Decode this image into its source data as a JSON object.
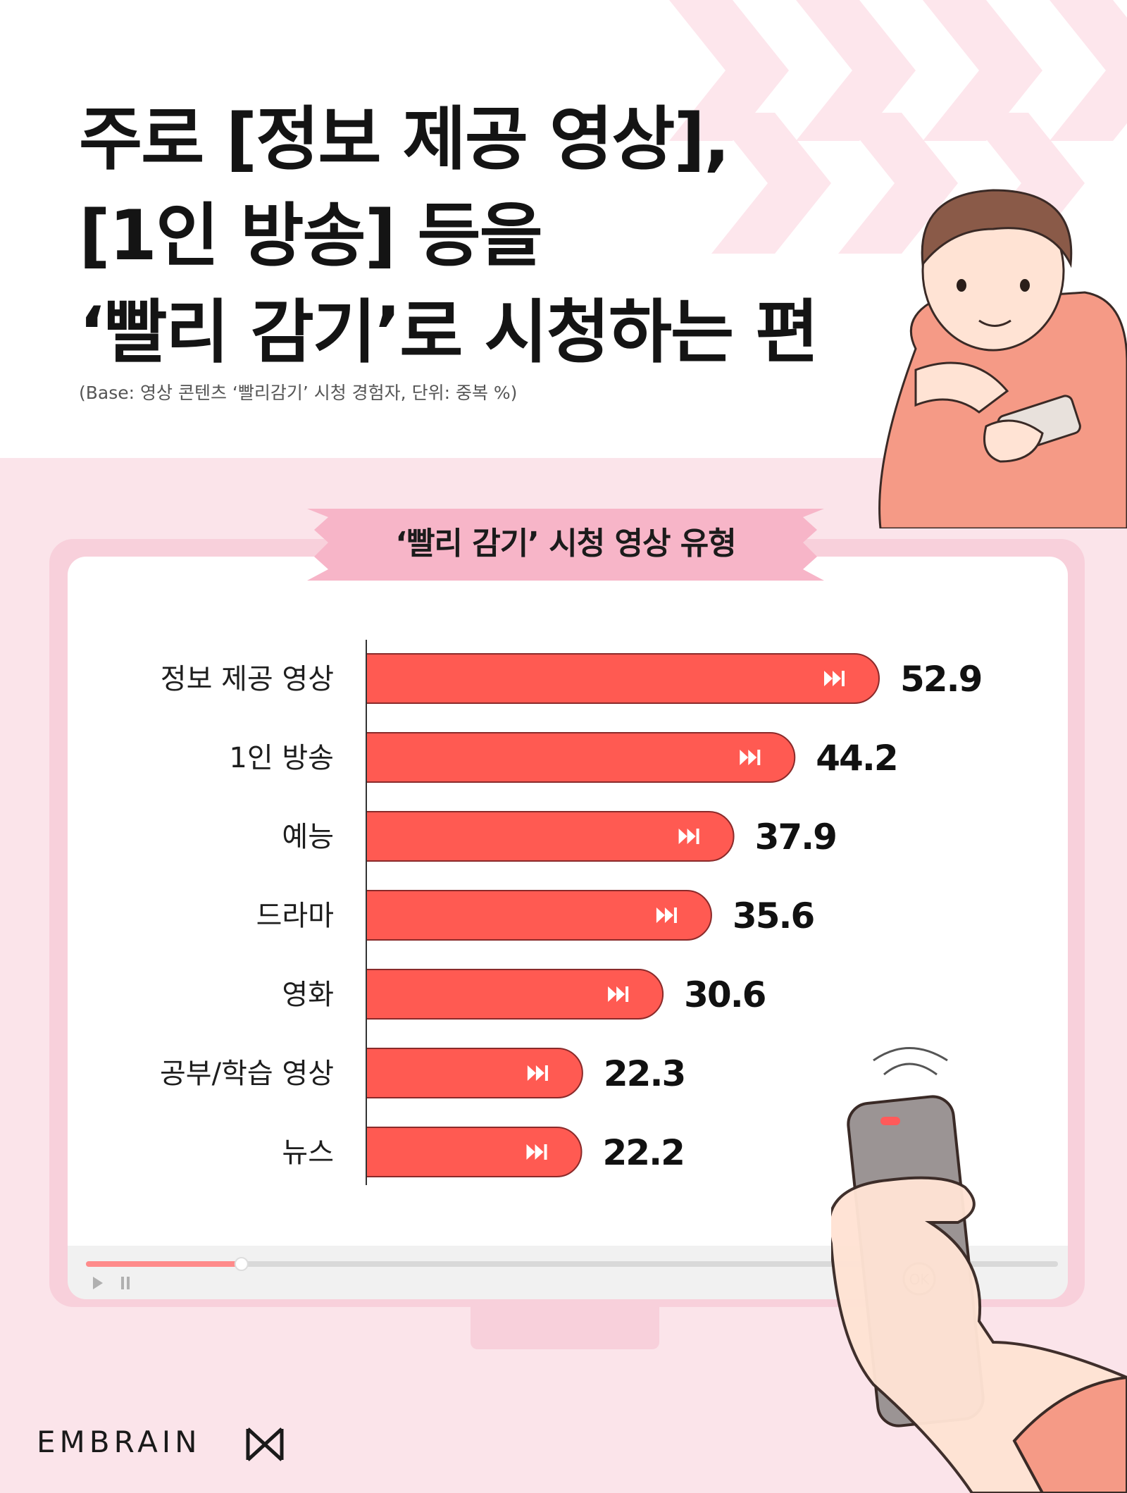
{
  "title": {
    "line1": "주로 [정보 제공 영상],",
    "line2": "[1인 방송] 등을",
    "line3": "‘빨리 감기’로 시청하는 편"
  },
  "subtitle": "(Base: 영상 콘텐츠 ‘빨리감기’ 시청 경험자, 단위: 중복 %)",
  "chart_data": {
    "type": "bar",
    "orientation": "horizontal",
    "title": "‘빨리 감기’ 시청 영상 유형",
    "categories": [
      "정보 제공 영상",
      "1인 방송",
      "예능",
      "드라마",
      "영화",
      "공부/학습 영상",
      "뉴스"
    ],
    "values": [
      52.9,
      44.2,
      37.9,
      35.6,
      30.6,
      22.3,
      22.2
    ],
    "value_labels": [
      "52.9",
      "44.2",
      "37.9",
      "35.6",
      "30.6",
      "22.3",
      "22.2"
    ],
    "bar_color": "#ff5a52",
    "bar_icon": "fast-forward-icon",
    "xlim": [
      0,
      52.9
    ],
    "grid": false
  },
  "player": {
    "progress": 0.16,
    "play_icon": "play-icon",
    "pause_icon": "pause-icon"
  },
  "brand": {
    "logo_text": "EMBRAIN",
    "logo_icon": "embrain-logo-icon"
  },
  "colors": {
    "background_pink": "#fbe4ea",
    "monitor_frame": "#f8d0db",
    "ribbon": "#f7b5c8",
    "bar": "#ff5a52",
    "title": "#141414"
  }
}
